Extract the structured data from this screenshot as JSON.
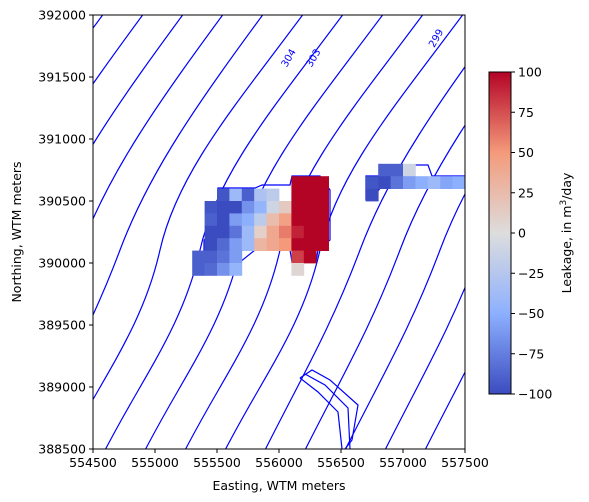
{
  "chart_data": {
    "type": "heatmap",
    "title": "",
    "xlabel": "Easting, WTM meters",
    "ylabel": "Northing, WTM meters",
    "xlim": [
      554500,
      557500
    ],
    "ylim": [
      388500,
      392000
    ],
    "x_ticks": [
      "554500",
      "555000",
      "555500",
      "556000",
      "556500",
      "557000",
      "557500"
    ],
    "y_ticks": [
      "388500",
      "389000",
      "389500",
      "390000",
      "390500",
      "391000",
      "391500",
      "392000"
    ],
    "x_tick_values": [
      554500,
      555000,
      555500,
      556000,
      556500,
      557000,
      557500
    ],
    "y_tick_values": [
      388500,
      389000,
      389500,
      390000,
      390500,
      391000,
      391500,
      392000
    ],
    "cell_size": 100,
    "colorbar": {
      "label_prefix": "Leakage, in m",
      "label_sup": "3",
      "label_suffix": "/day",
      "min": -100,
      "max": 100,
      "ticks": [
        "100",
        "75",
        "50",
        "25",
        "0",
        "−25",
        "−50",
        "−75",
        "−100"
      ],
      "tick_values": [
        100,
        75,
        50,
        25,
        0,
        -25,
        -50,
        -75,
        -100
      ],
      "colormap": "coolwarm"
    },
    "contour_labels": [
      {
        "text": "304",
        "x": 556100,
        "y": 391640
      },
      {
        "text": "303",
        "x": 556300,
        "y": 391640
      },
      {
        "text": "299",
        "x": 557290,
        "y": 391800
      }
    ],
    "cells": [
      {
        "x": 555550,
        "y": 390550,
        "v": -95
      },
      {
        "x": 555650,
        "y": 390550,
        "v": -40
      },
      {
        "x": 555750,
        "y": 390550,
        "v": -90
      },
      {
        "x": 555850,
        "y": 390550,
        "v": -30
      },
      {
        "x": 555950,
        "y": 390550,
        "v": -20
      },
      {
        "x": 555450,
        "y": 390450,
        "v": -95
      },
      {
        "x": 555550,
        "y": 390450,
        "v": -100
      },
      {
        "x": 555650,
        "y": 390450,
        "v": -100
      },
      {
        "x": 555750,
        "y": 390450,
        "v": -65
      },
      {
        "x": 555850,
        "y": 390450,
        "v": -45
      },
      {
        "x": 555950,
        "y": 390450,
        "v": -10
      },
      {
        "x": 556050,
        "y": 390450,
        "v": 15
      },
      {
        "x": 556150,
        "y": 390450,
        "v": 100
      },
      {
        "x": 556250,
        "y": 390450,
        "v": 100
      },
      {
        "x": 556350,
        "y": 390450,
        "v": 100
      },
      {
        "x": 555450,
        "y": 390350,
        "v": -90
      },
      {
        "x": 555550,
        "y": 390350,
        "v": -100
      },
      {
        "x": 555650,
        "y": 390350,
        "v": -60
      },
      {
        "x": 555750,
        "y": 390350,
        "v": -50
      },
      {
        "x": 555850,
        "y": 390350,
        "v": -20
      },
      {
        "x": 555950,
        "y": 390350,
        "v": 25
      },
      {
        "x": 556050,
        "y": 390350,
        "v": 45
      },
      {
        "x": 556150,
        "y": 390350,
        "v": 100
      },
      {
        "x": 556250,
        "y": 390350,
        "v": 100
      },
      {
        "x": 556350,
        "y": 390350,
        "v": 100
      },
      {
        "x": 555450,
        "y": 390250,
        "v": -100
      },
      {
        "x": 555550,
        "y": 390250,
        "v": -100
      },
      {
        "x": 555650,
        "y": 390250,
        "v": -80
      },
      {
        "x": 555750,
        "y": 390250,
        "v": -40
      },
      {
        "x": 555850,
        "y": 390250,
        "v": 10
      },
      {
        "x": 555950,
        "y": 390250,
        "v": 40
      },
      {
        "x": 556050,
        "y": 390250,
        "v": 60
      },
      {
        "x": 556150,
        "y": 390250,
        "v": 90
      },
      {
        "x": 556250,
        "y": 390250,
        "v": 100
      },
      {
        "x": 556350,
        "y": 390250,
        "v": 100
      },
      {
        "x": 555450,
        "y": 390150,
        "v": -100
      },
      {
        "x": 555550,
        "y": 390150,
        "v": -85
      },
      {
        "x": 555650,
        "y": 390150,
        "v": -60
      },
      {
        "x": 555750,
        "y": 390150,
        "v": -40
      },
      {
        "x": 555850,
        "y": 390150,
        "v": 30
      },
      {
        "x": 555950,
        "y": 390150,
        "v": 40
      },
      {
        "x": 556050,
        "y": 390150,
        "v": 50
      },
      {
        "x": 556150,
        "y": 390150,
        "v": 100
      },
      {
        "x": 556250,
        "y": 390150,
        "v": 100
      },
      {
        "x": 556350,
        "y": 390150,
        "v": 100
      },
      {
        "x": 555350,
        "y": 390050,
        "v": -90
      },
      {
        "x": 555450,
        "y": 390050,
        "v": -90
      },
      {
        "x": 555550,
        "y": 390050,
        "v": -80
      },
      {
        "x": 555650,
        "y": 390050,
        "v": -60
      },
      {
        "x": 556150,
        "y": 390050,
        "v": 80
      },
      {
        "x": 556250,
        "y": 390050,
        "v": 100
      },
      {
        "x": 555350,
        "y": 389950,
        "v": -90
      },
      {
        "x": 555450,
        "y": 389950,
        "v": -85
      },
      {
        "x": 555550,
        "y": 389950,
        "v": -65
      },
      {
        "x": 555650,
        "y": 389950,
        "v": -45
      },
      {
        "x": 556150,
        "y": 389950,
        "v": 5
      },
      {
        "x": 556150,
        "y": 390650,
        "v": 100
      },
      {
        "x": 556250,
        "y": 390650,
        "v": 100
      },
      {
        "x": 556350,
        "y": 390650,
        "v": 100
      },
      {
        "x": 556150,
        "y": 390550,
        "v": 100
      },
      {
        "x": 556250,
        "y": 390550,
        "v": 100
      },
      {
        "x": 556350,
        "y": 390550,
        "v": 100
      },
      {
        "x": 556850,
        "y": 390750,
        "v": -90
      },
      {
        "x": 556950,
        "y": 390750,
        "v": -90
      },
      {
        "x": 557050,
        "y": 390750,
        "v": -10
      },
      {
        "x": 556750,
        "y": 390650,
        "v": -95
      },
      {
        "x": 556850,
        "y": 390650,
        "v": -100
      },
      {
        "x": 556950,
        "y": 390650,
        "v": -80
      },
      {
        "x": 557050,
        "y": 390650,
        "v": -60
      },
      {
        "x": 557150,
        "y": 390650,
        "v": -50
      },
      {
        "x": 557250,
        "y": 390650,
        "v": -40
      },
      {
        "x": 557350,
        "y": 390650,
        "v": -55
      },
      {
        "x": 557450,
        "y": 390650,
        "v": -50
      },
      {
        "x": 556750,
        "y": 390550,
        "v": -100
      }
    ]
  }
}
